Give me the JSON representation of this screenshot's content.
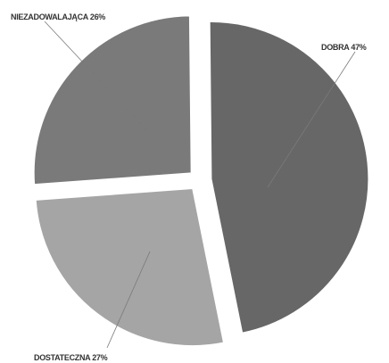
{
  "chart_data": {
    "type": "pie",
    "title": "",
    "slices": [
      {
        "label": "DOBRA 47%",
        "value": 47,
        "color": "#676767"
      },
      {
        "label": "DOSTATECZNA 27%",
        "value": 27,
        "color": "#a5a5a5"
      },
      {
        "label": "NIEZADOWALAJĄCA 26%",
        "value": 26,
        "color": "#7a7a7a"
      }
    ],
    "exploded": true,
    "legend": "none"
  }
}
